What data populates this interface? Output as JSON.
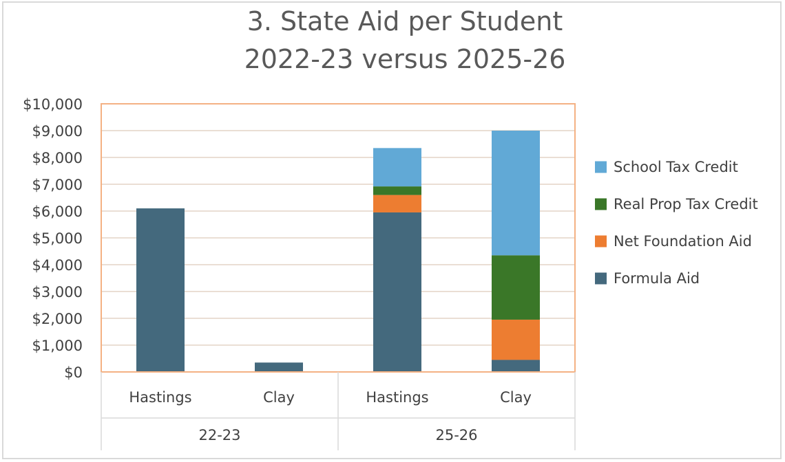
{
  "chart_data": {
    "type": "bar",
    "stacked": true,
    "title_lines": [
      "3. State Aid per Student",
      "2022-23 versus 2025-26"
    ],
    "categories": [
      "Hastings",
      "Clay",
      "Hastings",
      "Clay"
    ],
    "groups": [
      {
        "label": "22-23",
        "categories": [
          "Hastings",
          "Clay"
        ]
      },
      {
        "label": "25-26",
        "categories": [
          "Hastings",
          "Clay"
        ]
      }
    ],
    "series": [
      {
        "name": "Formula Aid",
        "color": "#44697d",
        "values": [
          6100,
          350,
          5950,
          450
        ]
      },
      {
        "name": "Net Foundation Aid",
        "color": "#ed7d31",
        "values": [
          0,
          0,
          650,
          1500
        ]
      },
      {
        "name": "Real Prop Tax Credit",
        "color": "#3a7728",
        "values": [
          0,
          0,
          320,
          2400
        ]
      },
      {
        "name": "School Tax Credit",
        "color": "#61a9d6",
        "values": [
          0,
          0,
          1430,
          4650
        ]
      }
    ],
    "legend_order": [
      "School Tax Credit",
      "Real Prop Tax Credit",
      "Net Foundation Aid",
      "Formula Aid"
    ],
    "ylim": [
      0,
      10000
    ],
    "yticks": [
      0,
      1000,
      2000,
      3000,
      4000,
      5000,
      6000,
      7000,
      8000,
      9000,
      10000
    ],
    "ytick_labels": [
      "$0",
      "$1,000",
      "$2,000",
      "$3,000",
      "$4,000",
      "$5,000",
      "$6,000",
      "$7,000",
      "$8,000",
      "$9,000",
      "$10,000"
    ],
    "grid": true,
    "legend_position": "right",
    "plot_border_color": "#f4b183",
    "grid_color": "#e3d4c6"
  }
}
